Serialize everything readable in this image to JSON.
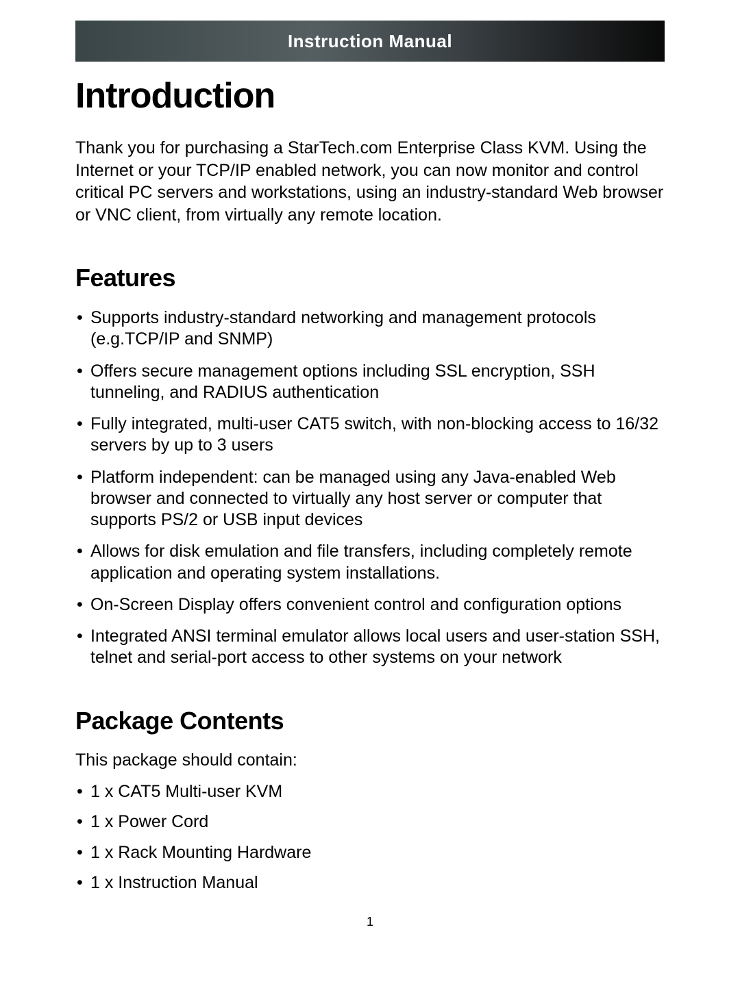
{
  "header": {
    "title": "Instruction Manual"
  },
  "main": {
    "heading": "Introduction",
    "intro": "Thank you for purchasing a StarTech.com Enterprise Class KVM.  Using the Internet or your TCP/IP enabled network, you can now monitor and control critical PC servers and workstations, using an industry-standard Web browser or VNC client, from virtually any remote location."
  },
  "features": {
    "heading": "Features",
    "items": [
      "Supports industry-standard networking and management protocols (e.g.TCP/IP and SNMP)",
      "Offers secure management options including SSL encryption, SSH tunneling, and RADIUS authentication",
      "Fully integrated, multi-user CAT5 switch, with non-blocking access to 16/32 servers by up to 3 users",
      "Platform independent: can be managed using any Java-enabled Web browser and connected to virtually any host server or computer that supports PS/2 or USB input devices",
      "Allows for disk emulation and file transfers, including completely remote application and operating system installations.",
      "On-Screen Display offers convenient control and configuration options",
      "Integrated ANSI terminal emulator allows local users and user-station SSH, telnet and serial-port access to other systems on your network"
    ]
  },
  "package": {
    "heading": "Package Contents",
    "intro": "This package should contain:",
    "items": [
      "1 x CAT5 Multi-user KVM",
      "1 x Power Cord",
      "1 x Rack Mounting Hardware",
      "1 x Instruction Manual"
    ]
  },
  "pageNumber": "1"
}
